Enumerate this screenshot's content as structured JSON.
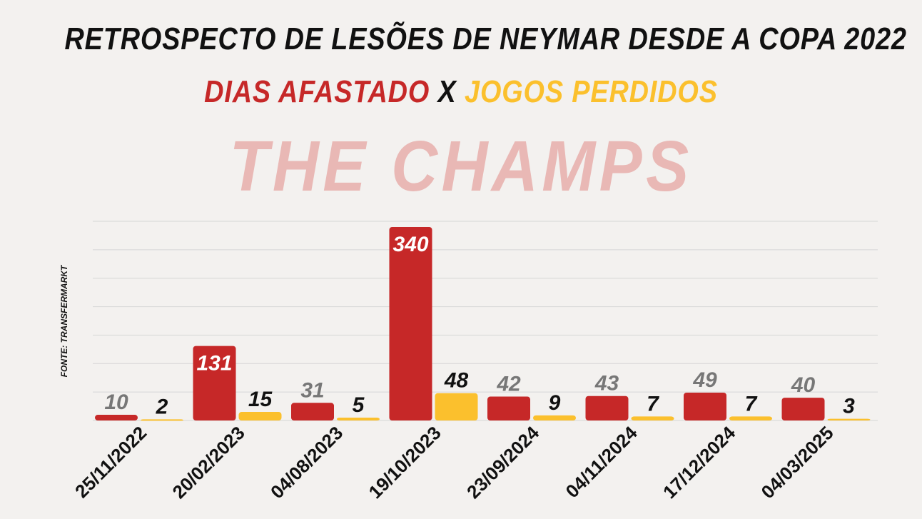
{
  "header": {
    "title": "RETROSPECTO DE LESÕES DE NEYMAR DESDE A COPA 2022",
    "subtitle_red": "DIAS AFASTADO",
    "subtitle_sep": "X",
    "subtitle_yellow": "JOGOS PERDIDOS"
  },
  "watermark": "THE CHAMPS",
  "source": "FONTE: TRANSFERMARKT",
  "colors": {
    "days": "#c62828",
    "games": "#fbc02d",
    "muted_label": "#777777",
    "label_dark": "#111111",
    "label_light": "#ffffff",
    "grid": "#d6d6d6",
    "background": "#f3f1ef"
  },
  "chart_data": {
    "type": "bar",
    "categories": [
      "25/11/2022",
      "20/02/2023",
      "04/08/2023",
      "19/10/2023",
      "23/09/2024",
      "04/11/2024",
      "17/12/2024",
      "04/03/2025"
    ],
    "series": [
      {
        "name": "DIAS AFASTADO",
        "values": [
          10,
          131,
          31,
          340,
          42,
          43,
          49,
          40
        ]
      },
      {
        "name": "JOGOS PERDIDOS",
        "values": [
          2,
          15,
          5,
          48,
          9,
          7,
          7,
          3
        ]
      }
    ],
    "ylim": [
      0,
      350
    ],
    "grid": true,
    "legend": "title"
  }
}
